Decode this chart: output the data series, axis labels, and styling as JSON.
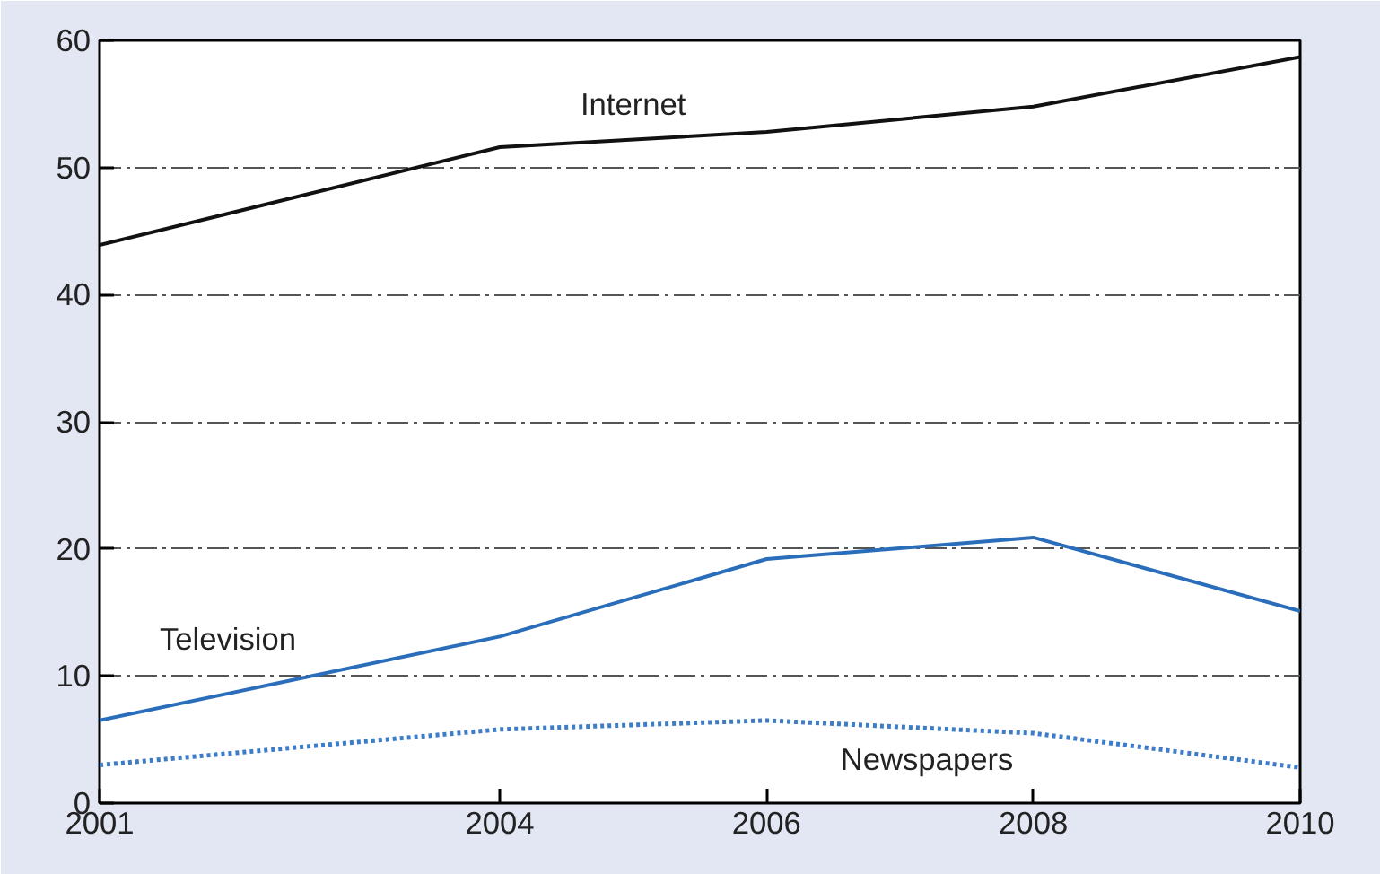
{
  "chart_data": {
    "type": "line",
    "x": [
      2001,
      2004,
      2006,
      2008,
      2010
    ],
    "xlim": [
      2001,
      2010
    ],
    "xticks": [
      2001,
      2004,
      2006,
      2008,
      2010
    ],
    "ylim": [
      0,
      60
    ],
    "yticks": [
      0,
      10,
      20,
      30,
      40,
      50,
      60
    ],
    "grid": "y",
    "series": [
      {
        "name": "Internet",
        "color": "#111111",
        "line_style": "solid",
        "values": [
          43.9,
          51.6,
          52.8,
          54.8,
          58.7
        ]
      },
      {
        "name": "Television",
        "color": "#2a6ebb",
        "line_style": "solid",
        "values": [
          6.5,
          13.1,
          19.2,
          20.9,
          15.1
        ]
      },
      {
        "name": "Newspapers",
        "color": "#3d7cc9",
        "line_style": "dotted",
        "values": [
          3.0,
          5.8,
          6.5,
          5.5,
          2.8
        ]
      }
    ]
  }
}
